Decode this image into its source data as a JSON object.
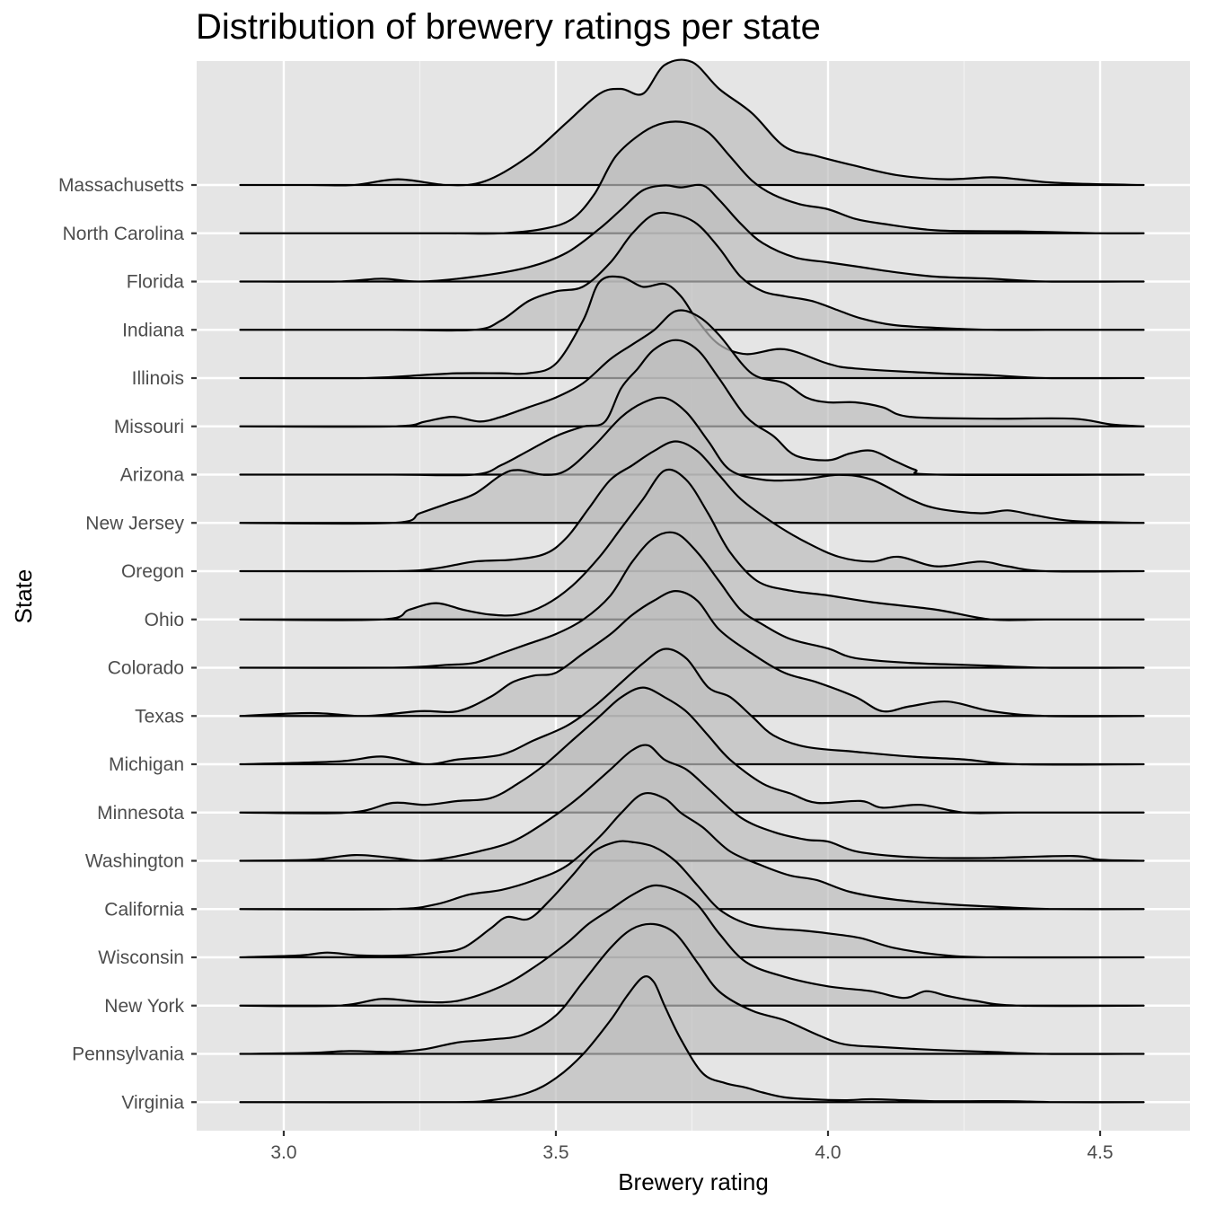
{
  "chart_data": {
    "type": "ridgeline",
    "title": "Distribution of brewery ratings per state",
    "xlabel": "Brewery rating",
    "ylabel": "State",
    "xlim": [
      2.84,
      4.665
    ],
    "x_ticks": [
      "3.0",
      "3.5",
      "4.0",
      "4.5"
    ],
    "x_tick_values": [
      3.0,
      3.5,
      4.0,
      4.5
    ],
    "density_range": [
      2.92,
      4.58
    ],
    "grid": true,
    "fill_color": "#bdbdbd",
    "panel_color": "#e5e5e5",
    "categories": [
      "Massachusetts",
      "North Carolina",
      "Florida",
      "Indiana",
      "Illinois",
      "Missouri",
      "Arizona",
      "New Jersey",
      "Oregon",
      "Ohio",
      "Colorado",
      "Texas",
      "Michigan",
      "Minnesota",
      "Washington",
      "California",
      "Wisconsin",
      "New York",
      "Pennsylvania",
      "Virginia"
    ],
    "series": [
      {
        "name": "Massachusetts",
        "x": [
          2.92,
          3.05,
          3.13,
          3.21,
          3.3,
          3.37,
          3.45,
          3.52,
          3.58,
          3.62,
          3.66,
          3.7,
          3.75,
          3.8,
          3.86,
          3.92,
          3.98,
          4.05,
          4.13,
          4.22,
          4.3,
          4.35,
          4.4,
          4.48,
          4.58
        ],
        "y": [
          0,
          0,
          0,
          0.06,
          0,
          0.04,
          0.3,
          0.65,
          0.95,
          1.0,
          0.95,
          1.25,
          1.28,
          1.0,
          0.75,
          0.4,
          0.3,
          0.2,
          0.1,
          0.06,
          0.08,
          0.06,
          0.03,
          0.01,
          0
        ]
      },
      {
        "name": "North Carolina",
        "x": [
          2.92,
          3.1,
          3.3,
          3.4,
          3.48,
          3.53,
          3.57,
          3.61,
          3.66,
          3.7,
          3.74,
          3.78,
          3.82,
          3.86,
          3.9,
          3.95,
          4.0,
          4.05,
          4.1,
          4.2,
          4.35,
          4.5,
          4.58
        ],
        "y": [
          0,
          0,
          0,
          0,
          0.05,
          0.15,
          0.4,
          0.8,
          1.05,
          1.15,
          1.15,
          1.05,
          0.8,
          0.55,
          0.4,
          0.3,
          0.25,
          0.15,
          0.1,
          0.03,
          0.02,
          0,
          0
        ]
      },
      {
        "name": "Florida",
        "x": [
          2.92,
          3.1,
          3.18,
          3.25,
          3.35,
          3.45,
          3.52,
          3.58,
          3.62,
          3.66,
          3.7,
          3.73,
          3.77,
          3.8,
          3.84,
          3.88,
          3.94,
          4.0,
          4.06,
          4.12,
          4.2,
          4.3,
          4.4,
          4.58
        ],
        "y": [
          0,
          0,
          0.03,
          0,
          0.05,
          0.15,
          0.3,
          0.55,
          0.75,
          0.95,
          1.0,
          0.98,
          1.0,
          0.85,
          0.6,
          0.4,
          0.25,
          0.2,
          0.15,
          0.1,
          0.05,
          0.03,
          0,
          0
        ]
      },
      {
        "name": "Indiana",
        "x": [
          2.92,
          3.2,
          3.35,
          3.4,
          3.45,
          3.5,
          3.55,
          3.6,
          3.64,
          3.68,
          3.72,
          3.76,
          3.8,
          3.84,
          3.88,
          3.92,
          3.97,
          4.02,
          4.06,
          4.12,
          4.2,
          4.3,
          4.4,
          4.58
        ],
        "y": [
          0,
          0,
          0,
          0.1,
          0.3,
          0.4,
          0.45,
          0.7,
          1.0,
          1.2,
          1.2,
          1.1,
          0.85,
          0.55,
          0.4,
          0.35,
          0.3,
          0.2,
          0.12,
          0.05,
          0.02,
          0,
          0,
          0
        ]
      },
      {
        "name": "Illinois",
        "x": [
          2.92,
          3.15,
          3.25,
          3.32,
          3.4,
          3.45,
          3.5,
          3.55,
          3.58,
          3.62,
          3.66,
          3.7,
          3.73,
          3.76,
          3.8,
          3.85,
          3.92,
          4.0,
          4.05,
          4.2,
          4.3,
          4.4,
          4.58
        ],
        "y": [
          0,
          0,
          0.03,
          0.05,
          0.05,
          0.05,
          0.15,
          0.6,
          1.0,
          1.05,
          0.95,
          0.98,
          0.85,
          0.6,
          0.35,
          0.25,
          0.3,
          0.15,
          0.1,
          0.05,
          0.03,
          0,
          0
        ]
      },
      {
        "name": "Missouri",
        "x": [
          2.92,
          3.2,
          3.26,
          3.31,
          3.36,
          3.4,
          3.45,
          3.5,
          3.55,
          3.6,
          3.64,
          3.68,
          3.72,
          3.76,
          3.8,
          3.86,
          3.92,
          3.96,
          4.0,
          4.05,
          4.1,
          4.15,
          4.3,
          4.45,
          4.52,
          4.58
        ],
        "y": [
          0,
          0,
          0.05,
          0.1,
          0.05,
          0.1,
          0.2,
          0.3,
          0.45,
          0.7,
          0.85,
          1.0,
          1.2,
          1.15,
          0.95,
          0.55,
          0.45,
          0.3,
          0.25,
          0.25,
          0.2,
          0.1,
          0.08,
          0.08,
          0.02,
          0
        ]
      },
      {
        "name": "Arizona",
        "x": [
          2.92,
          3.2,
          3.35,
          3.4,
          3.45,
          3.5,
          3.55,
          3.59,
          3.62,
          3.65,
          3.68,
          3.72,
          3.76,
          3.8,
          3.85,
          3.9,
          3.94,
          4.0,
          4.04,
          4.08,
          4.12,
          4.16,
          4.2,
          4.58
        ],
        "y": [
          0,
          0,
          0,
          0.1,
          0.25,
          0.4,
          0.5,
          0.55,
          0.9,
          1.1,
          1.3,
          1.4,
          1.3,
          1.0,
          0.6,
          0.4,
          0.2,
          0.15,
          0.22,
          0.25,
          0.15,
          0.05,
          0,
          0
        ]
      },
      {
        "name": "New Jersey",
        "x": [
          2.92,
          3.2,
          3.25,
          3.3,
          3.35,
          3.4,
          3.43,
          3.48,
          3.52,
          3.57,
          3.62,
          3.66,
          3.7,
          3.74,
          3.78,
          3.82,
          3.88,
          3.95,
          4.02,
          4.08,
          4.15,
          4.2,
          4.28,
          4.33,
          4.38,
          4.45,
          4.58
        ],
        "y": [
          0,
          0,
          0.1,
          0.2,
          0.3,
          0.5,
          0.55,
          0.5,
          0.55,
          0.8,
          1.1,
          1.25,
          1.3,
          1.15,
          0.85,
          0.55,
          0.45,
          0.45,
          0.5,
          0.45,
          0.25,
          0.15,
          0.1,
          0.13,
          0.08,
          0.02,
          0
        ]
      },
      {
        "name": "Oregon",
        "x": [
          2.92,
          3.2,
          3.28,
          3.35,
          3.42,
          3.48,
          3.52,
          3.56,
          3.6,
          3.64,
          3.68,
          3.72,
          3.76,
          3.8,
          3.84,
          3.9,
          3.96,
          4.02,
          4.08,
          4.13,
          4.2,
          4.28,
          4.33,
          4.4,
          4.58
        ],
        "y": [
          0,
          0,
          0.03,
          0.1,
          0.12,
          0.18,
          0.35,
          0.65,
          0.95,
          1.1,
          1.25,
          1.35,
          1.25,
          1.0,
          0.75,
          0.5,
          0.3,
          0.15,
          0.1,
          0.15,
          0.05,
          0.1,
          0.05,
          0,
          0
        ]
      },
      {
        "name": "Ohio",
        "x": [
          2.92,
          3.18,
          3.23,
          3.28,
          3.33,
          3.38,
          3.43,
          3.48,
          3.53,
          3.58,
          3.62,
          3.66,
          3.7,
          3.74,
          3.78,
          3.82,
          3.87,
          3.93,
          4.0,
          4.08,
          4.2,
          4.3,
          4.4,
          4.58
        ],
        "y": [
          0,
          0,
          0.1,
          0.17,
          0.1,
          0.05,
          0.05,
          0.15,
          0.35,
          0.65,
          0.95,
          1.25,
          1.55,
          1.45,
          1.1,
          0.7,
          0.4,
          0.3,
          0.25,
          0.18,
          0.1,
          0,
          0,
          0
        ]
      },
      {
        "name": "Colorado",
        "x": [
          2.92,
          3.2,
          3.3,
          3.35,
          3.4,
          3.45,
          3.5,
          3.55,
          3.6,
          3.64,
          3.68,
          3.72,
          3.76,
          3.8,
          3.84,
          3.88,
          3.93,
          4.0,
          4.05,
          4.15,
          4.25,
          4.3,
          4.4,
          4.58
        ],
        "y": [
          0,
          0,
          0.03,
          0.05,
          0.15,
          0.25,
          0.35,
          0.5,
          0.75,
          1.1,
          1.35,
          1.4,
          1.2,
          0.9,
          0.6,
          0.45,
          0.3,
          0.2,
          0.1,
          0.05,
          0.03,
          0.02,
          0,
          0
        ]
      },
      {
        "name": "Texas",
        "x": [
          2.92,
          3.05,
          3.15,
          3.25,
          3.32,
          3.38,
          3.42,
          3.46,
          3.5,
          3.55,
          3.6,
          3.64,
          3.68,
          3.72,
          3.76,
          3.8,
          3.86,
          3.92,
          3.98,
          4.05,
          4.1,
          4.15,
          4.22,
          4.3,
          4.4,
          4.58
        ],
        "y": [
          0,
          0.03,
          0,
          0.05,
          0.05,
          0.2,
          0.35,
          0.42,
          0.45,
          0.65,
          0.85,
          1.05,
          1.2,
          1.3,
          1.2,
          0.9,
          0.65,
          0.45,
          0.35,
          0.2,
          0.05,
          0.1,
          0.15,
          0.05,
          0,
          0
        ]
      },
      {
        "name": "Michigan",
        "x": [
          2.92,
          3.1,
          3.18,
          3.26,
          3.32,
          3.4,
          3.46,
          3.52,
          3.57,
          3.62,
          3.66,
          3.7,
          3.74,
          3.78,
          3.82,
          3.86,
          3.9,
          3.96,
          4.05,
          4.15,
          4.25,
          4.35,
          4.58
        ],
        "y": [
          0,
          0.03,
          0.08,
          0,
          0.05,
          0.1,
          0.25,
          0.4,
          0.6,
          0.85,
          1.05,
          1.2,
          1.1,
          0.8,
          0.7,
          0.5,
          0.3,
          0.18,
          0.13,
          0.08,
          0.05,
          0,
          0
        ]
      },
      {
        "name": "Minnesota",
        "x": [
          2.92,
          3.12,
          3.2,
          3.26,
          3.32,
          3.38,
          3.43,
          3.48,
          3.53,
          3.58,
          3.62,
          3.66,
          3.7,
          3.74,
          3.78,
          3.82,
          3.88,
          3.93,
          3.98,
          4.06,
          4.1,
          4.17,
          4.25,
          4.35,
          4.58
        ],
        "y": [
          0,
          0,
          0.1,
          0.08,
          0.12,
          0.15,
          0.3,
          0.5,
          0.75,
          1.0,
          1.2,
          1.3,
          1.2,
          1.05,
          0.8,
          0.55,
          0.3,
          0.2,
          0.1,
          0.12,
          0.05,
          0.08,
          0,
          0,
          0
        ]
      },
      {
        "name": "Washington",
        "x": [
          2.92,
          3.05,
          3.13,
          3.2,
          3.25,
          3.3,
          3.36,
          3.42,
          3.48,
          3.54,
          3.6,
          3.64,
          3.67,
          3.7,
          3.74,
          3.78,
          3.84,
          3.9,
          3.96,
          4.0,
          4.05,
          4.12,
          4.2,
          4.3,
          4.45,
          4.5,
          4.58
        ],
        "y": [
          0,
          0.01,
          0.06,
          0.03,
          0,
          0.03,
          0.1,
          0.2,
          0.4,
          0.65,
          0.95,
          1.15,
          1.2,
          1.05,
          0.95,
          0.75,
          0.45,
          0.3,
          0.22,
          0.2,
          0.1,
          0.05,
          0.03,
          0.03,
          0.05,
          0.01,
          0
        ]
      },
      {
        "name": "California",
        "x": [
          2.92,
          3.2,
          3.28,
          3.34,
          3.4,
          3.46,
          3.52,
          3.58,
          3.62,
          3.66,
          3.7,
          3.73,
          3.77,
          3.82,
          3.88,
          3.93,
          3.98,
          4.04,
          4.12,
          4.22,
          4.32,
          4.42,
          4.58
        ],
        "y": [
          0,
          0,
          0.05,
          0.15,
          0.2,
          0.3,
          0.45,
          0.75,
          1.0,
          1.2,
          1.15,
          1.0,
          0.85,
          0.6,
          0.45,
          0.35,
          0.3,
          0.18,
          0.1,
          0.05,
          0.02,
          0,
          0
        ]
      },
      {
        "name": "Wisconsin",
        "x": [
          2.92,
          3.03,
          3.08,
          3.14,
          3.22,
          3.28,
          3.33,
          3.38,
          3.41,
          3.45,
          3.49,
          3.53,
          3.57,
          3.61,
          3.64,
          3.68,
          3.72,
          3.76,
          3.8,
          3.85,
          3.9,
          3.95,
          4.0,
          4.06,
          4.12,
          4.2,
          4.3,
          4.58
        ],
        "y": [
          0,
          0.02,
          0.05,
          0.02,
          0.02,
          0.05,
          0.1,
          0.3,
          0.42,
          0.4,
          0.6,
          0.85,
          1.1,
          1.2,
          1.2,
          1.15,
          1.0,
          0.75,
          0.5,
          0.35,
          0.3,
          0.28,
          0.25,
          0.2,
          0.1,
          0.03,
          0,
          0
        ]
      },
      {
        "name": "New York",
        "x": [
          2.92,
          3.1,
          3.18,
          3.25,
          3.32,
          3.4,
          3.46,
          3.52,
          3.56,
          3.6,
          3.64,
          3.68,
          3.72,
          3.76,
          3.8,
          3.85,
          3.92,
          4.0,
          4.08,
          4.14,
          4.18,
          4.22,
          4.27,
          4.35,
          4.58
        ],
        "y": [
          0,
          0,
          0.07,
          0.04,
          0.05,
          0.2,
          0.4,
          0.65,
          0.85,
          1.0,
          1.15,
          1.25,
          1.2,
          1.05,
          0.75,
          0.45,
          0.3,
          0.2,
          0.15,
          0.08,
          0.15,
          0.1,
          0.05,
          0,
          0
        ]
      },
      {
        "name": "Pennsylvania",
        "x": [
          2.92,
          3.05,
          3.12,
          3.2,
          3.26,
          3.32,
          3.38,
          3.44,
          3.5,
          3.55,
          3.6,
          3.64,
          3.68,
          3.72,
          3.76,
          3.8,
          3.86,
          3.92,
          3.98,
          4.03,
          4.1,
          4.2,
          4.3,
          4.4,
          4.58
        ],
        "y": [
          0,
          0.01,
          0.03,
          0.02,
          0.05,
          0.12,
          0.15,
          0.2,
          0.4,
          0.75,
          1.1,
          1.3,
          1.35,
          1.25,
          0.95,
          0.65,
          0.45,
          0.35,
          0.2,
          0.1,
          0.07,
          0.04,
          0.02,
          0,
          0
        ]
      },
      {
        "name": "Virginia",
        "x": [
          2.92,
          3.3,
          3.38,
          3.45,
          3.5,
          3.55,
          3.6,
          3.63,
          3.66,
          3.68,
          3.7,
          3.73,
          3.77,
          3.81,
          3.85,
          3.88,
          3.92,
          3.97,
          4.03,
          4.08,
          4.14,
          4.2,
          4.26,
          4.34,
          4.42,
          4.58
        ],
        "y": [
          0,
          0,
          0.02,
          0.1,
          0.25,
          0.5,
          0.85,
          1.1,
          1.3,
          1.25,
          1.0,
          0.65,
          0.3,
          0.2,
          0.15,
          0.1,
          0.05,
          0.03,
          0.02,
          0.03,
          0.02,
          0.01,
          0.01,
          0.01,
          0,
          0
        ]
      }
    ]
  }
}
